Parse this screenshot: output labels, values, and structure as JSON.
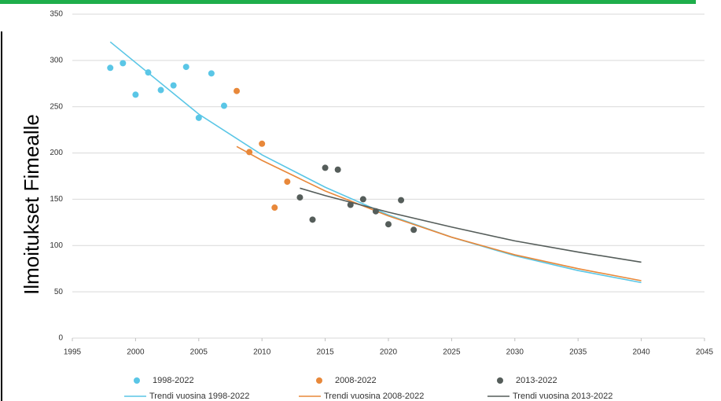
{
  "chart_data": {
    "type": "scatter",
    "y_label": "Ilmoitukset Fimealle",
    "xlim": [
      1995,
      2045
    ],
    "xticks": [
      1995,
      2000,
      2005,
      2010,
      2015,
      2020,
      2025,
      2030,
      2035,
      2040,
      2045
    ],
    "ylim": [
      0,
      350
    ],
    "yticks": [
      0,
      50,
      100,
      150,
      200,
      250,
      300,
      350
    ],
    "grid": true,
    "series": [
      {
        "name": "1998-2022",
        "kind": "scatter",
        "color": "#5ac6e6",
        "x": [
          1998,
          1999,
          2000,
          2001,
          2002,
          2003,
          2004,
          2005,
          2006,
          2007
        ],
        "values": [
          292,
          297,
          263,
          287,
          268,
          273,
          293,
          238,
          286,
          251
        ]
      },
      {
        "name": "2008-2022",
        "kind": "scatter",
        "color": "#e8883a",
        "x": [
          2008,
          2009,
          2010,
          2011,
          2012
        ],
        "values": [
          267,
          201,
          210,
          141,
          169
        ]
      },
      {
        "name": "2013-2022",
        "kind": "scatter",
        "color": "#555d5a",
        "x": [
          2013,
          2014,
          2015,
          2016,
          2017,
          2018,
          2019,
          2020,
          2021,
          2022
        ],
        "values": [
          152,
          128,
          184,
          182,
          144,
          150,
          137,
          123,
          149,
          117
        ]
      },
      {
        "name": "Trendi vuosina 1998-2022",
        "kind": "line",
        "color": "#5ac6e6",
        "x": [
          1998,
          2005,
          2010,
          2015,
          2020,
          2025,
          2030,
          2035,
          2040
        ],
        "values": [
          320,
          242,
          198,
          163,
          133,
          109,
          89,
          73,
          60
        ]
      },
      {
        "name": "Trendi vuosina 2008-2022",
        "kind": "line",
        "color": "#e8883a",
        "x": [
          2008,
          2010,
          2015,
          2020,
          2025,
          2030,
          2035,
          2040
        ],
        "values": [
          207,
          192,
          159,
          132,
          109,
          90,
          75,
          62
        ]
      },
      {
        "name": "Trendi vuosina 2013-2022",
        "kind": "line",
        "color": "#555d5a",
        "x": [
          2013,
          2015,
          2020,
          2025,
          2030,
          2035,
          2040
        ],
        "values": [
          162,
          154,
          136,
          120,
          105,
          93,
          82
        ]
      }
    ]
  }
}
